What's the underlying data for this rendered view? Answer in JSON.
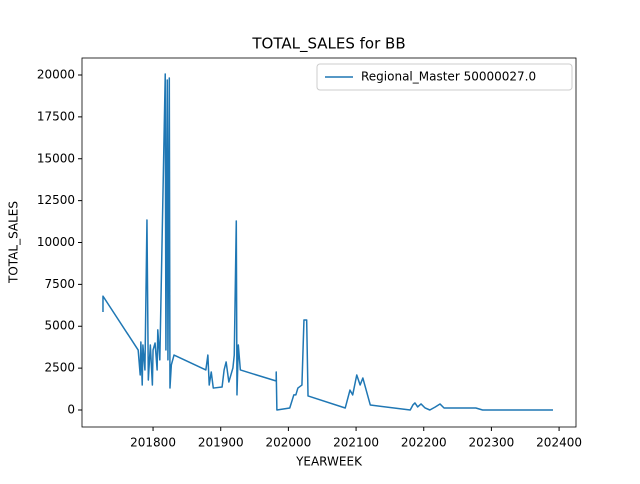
{
  "chart_data": {
    "type": "line",
    "title": "TOTAL_SALES for BB",
    "x_label": "YEARWEEK",
    "y_label": "TOTAL_SALES",
    "x": [
      201726,
      201726,
      201778,
      201781,
      201782,
      201784,
      201785,
      201788,
      201791,
      201793,
      201796,
      201799,
      201800,
      201803,
      201806,
      201807,
      201810,
      201818,
      201819,
      201821,
      201822,
      201824,
      201825,
      201827,
      201831,
      201878,
      201881,
      201883,
      201886,
      201889,
      201902,
      201905,
      201908,
      201912,
      201918,
      201920,
      201923,
      201924,
      201926,
      201929,
      201982,
      201982,
      201983,
      202002,
      202008,
      202011,
      202014,
      202020,
      202023,
      202027,
      202029,
      202084,
      202091,
      202095,
      202101,
      202106,
      202110,
      202121,
      202180,
      202184,
      202187,
      202191,
      202196,
      202202,
      202209,
      202217,
      202224,
      202230,
      202277,
      202287,
      202391
    ],
    "series": [
      {
        "name": "Regional_Master 50000027.0",
        "color": "#1f77b4",
        "values": [
          5850,
          6800,
          3580,
          2090,
          4060,
          1490,
          3880,
          2390,
          11340,
          1790,
          3880,
          1490,
          3580,
          4000,
          2390,
          4780,
          2990,
          20060,
          3580,
          19700,
          2990,
          19820,
          1310,
          2690,
          3280,
          2390,
          3280,
          1490,
          2270,
          1310,
          1370,
          2390,
          2870,
          1670,
          2510,
          3280,
          11280,
          900,
          3880,
          2390,
          1730,
          2270,
          0,
          120,
          900,
          900,
          1310,
          1490,
          5370,
          5370,
          840,
          120,
          1190,
          900,
          2090,
          1490,
          1910,
          300,
          0,
          300,
          420,
          180,
          360,
          120,
          0,
          180,
          360,
          120,
          120,
          0,
          0
        ]
      }
    ],
    "xlim": [
      201695,
      202425
    ],
    "ylim": [
      -1015,
      21015
    ],
    "xticks": [
      201800,
      201900,
      202000,
      202100,
      202200,
      202300,
      202400
    ],
    "yticks": [
      0,
      2500,
      5000,
      7500,
      10000,
      12500,
      15000,
      17500,
      20000
    ],
    "legend": "upper right"
  }
}
